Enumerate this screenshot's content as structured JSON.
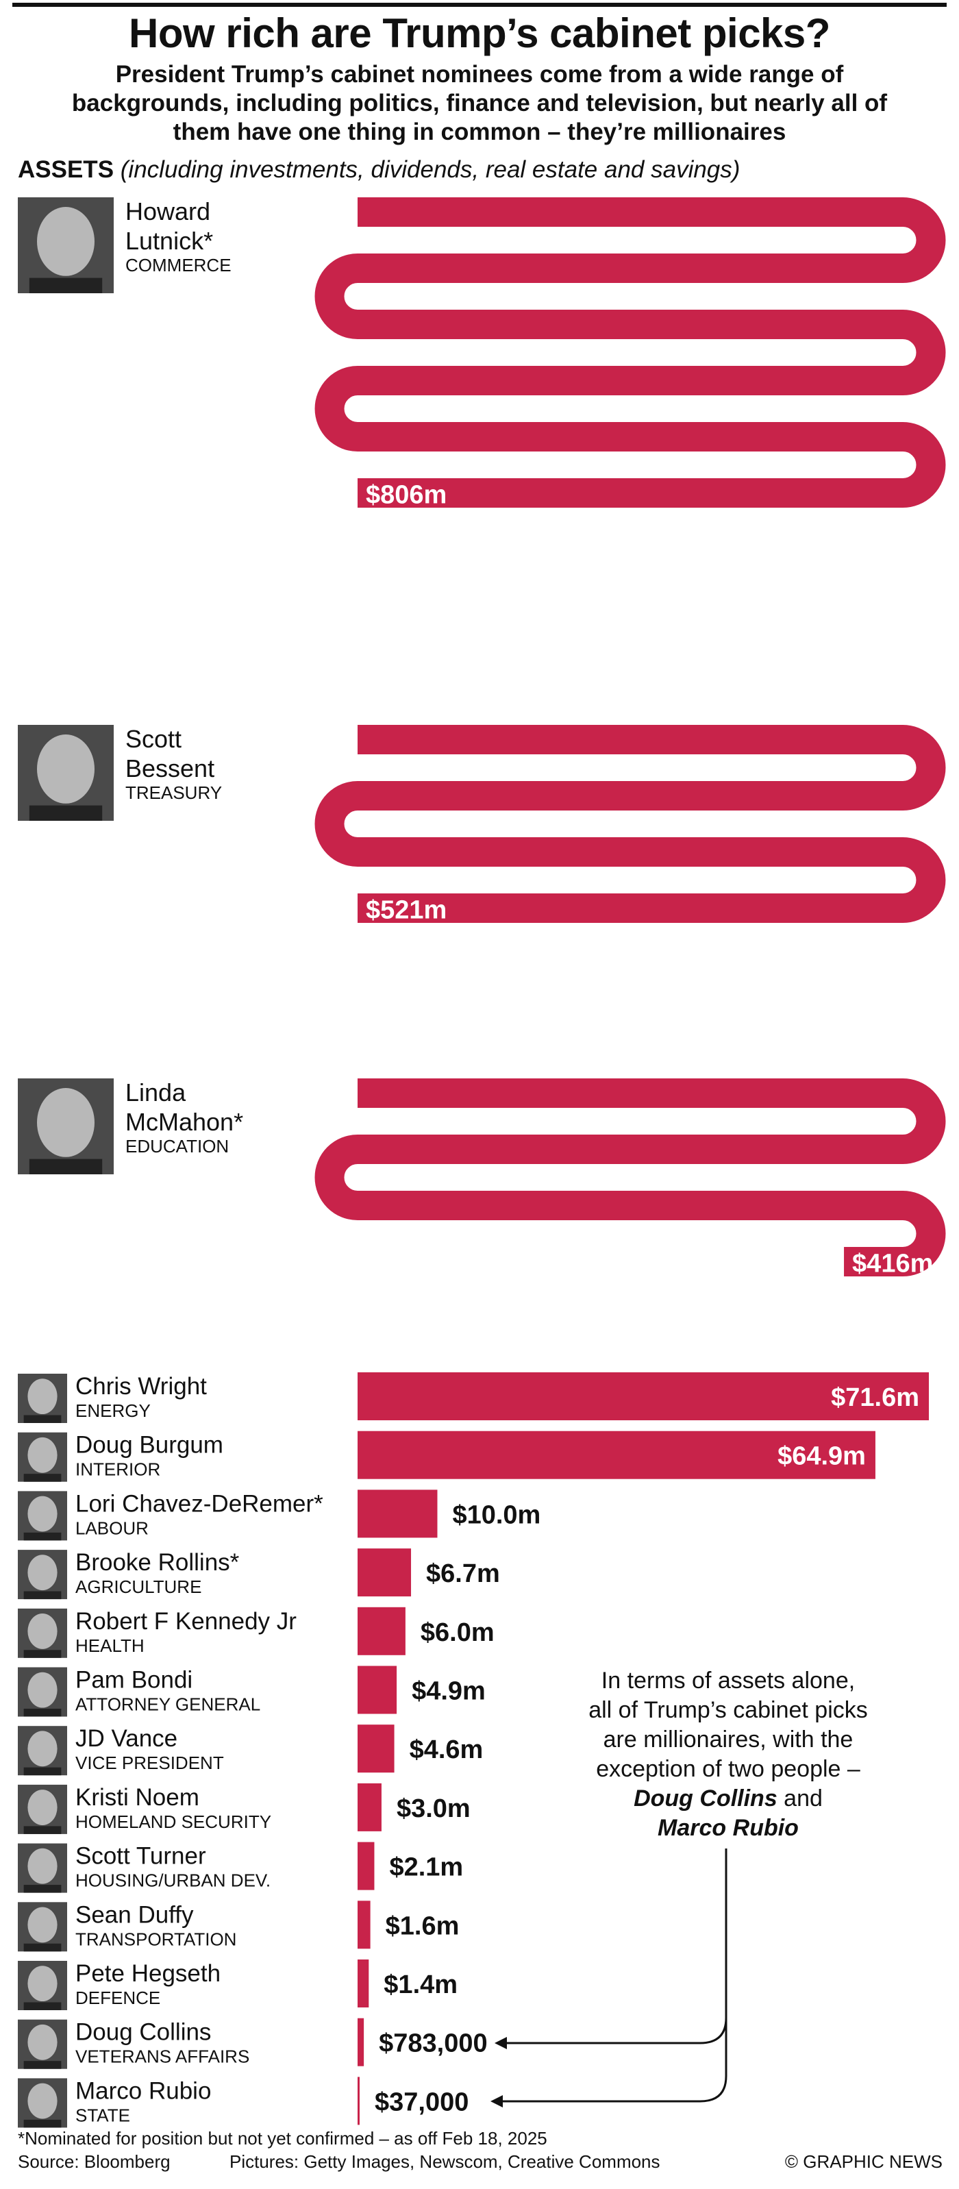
{
  "header": {
    "title": "How rich are Trump’s cabinet picks?",
    "subtitle": "President Trump’s cabinet nominees come from a wide range of backgrounds, including politics, finance and television, but nearly all of them have one thing in common – they’re millionaires",
    "assets_bold": "ASSETS",
    "assets_note": "(including investments, dividends, real estate and savings)"
  },
  "chart_data": {
    "type": "bar",
    "title": "How rich are Trump’s cabinet picks?",
    "ylabel": "ASSETS (including investments, dividends, real estate and savings)",
    "bar_color": "#c8234a",
    "people": [
      {
        "first": "Howard",
        "last": "Lutnick*",
        "role": "COMMERCE",
        "value": 806000000,
        "label": "$806m"
      },
      {
        "first": "Scott",
        "last": "Bessent",
        "role": "TREASURY",
        "value": 521000000,
        "label": "$521m"
      },
      {
        "first": "Linda",
        "last": "McMahon*",
        "role": "EDUCATION",
        "value": 416000000,
        "label": "$416m"
      },
      {
        "name": "Chris Wright",
        "role": "ENERGY",
        "value": 71600000,
        "label": "$71.6m"
      },
      {
        "name": "Doug Burgum",
        "role": "INTERIOR",
        "value": 64900000,
        "label": "$64.9m"
      },
      {
        "name": "Lori Chavez-DeRemer*",
        "role": "LABOUR",
        "value": 10000000,
        "label": "$10.0m"
      },
      {
        "name": "Brooke Rollins*",
        "role": "AGRICULTURE",
        "value": 6700000,
        "label": "$6.7m"
      },
      {
        "name": "Robert F Kennedy Jr",
        "role": "HEALTH",
        "value": 6000000,
        "label": "$6.0m"
      },
      {
        "name": "Pam Bondi",
        "role": "ATTORNEY GENERAL",
        "value": 4900000,
        "label": "$4.9m"
      },
      {
        "name": "JD Vance",
        "role": "VICE PRESIDENT",
        "value": 4600000,
        "label": "$4.6m"
      },
      {
        "name": "Kristi Noem",
        "role": "HOMELAND SECURITY",
        "value": 3000000,
        "label": "$3.0m"
      },
      {
        "name": "Scott Turner",
        "role": "HOUSING/URBAN DEV.",
        "value": 2100000,
        "label": "$2.1m"
      },
      {
        "name": "Sean Duffy",
        "role": "TRANSPORTATION",
        "value": 1600000,
        "label": "$1.6m"
      },
      {
        "name": "Pete Hegseth",
        "role": "DEFENCE",
        "value": 1400000,
        "label": "$1.4m"
      },
      {
        "name": "Doug Collins",
        "role": "VETERANS AFFAIRS",
        "value": 783000,
        "label": "$783,000"
      },
      {
        "name": "Marco Rubio",
        "role": "STATE",
        "value": 37000,
        "label": "$37,000"
      }
    ],
    "annotation": {
      "lines": [
        "In terms of assets alone,",
        "all of Trump’s cabinet picks",
        "are millionaires, with the",
        "exception of two people –"
      ],
      "name1": "Doug Collins",
      "and": " and",
      "name2": "Marco Rubio"
    }
  },
  "footer": {
    "footnote": "*Nominated for position but not yet confirmed – as off Feb 18, 2025",
    "source": "Source: Bloomberg",
    "pictures": "Pictures: Getty Images, Newscom, Creative Commons",
    "copyright": "© GRAPHIC NEWS"
  }
}
